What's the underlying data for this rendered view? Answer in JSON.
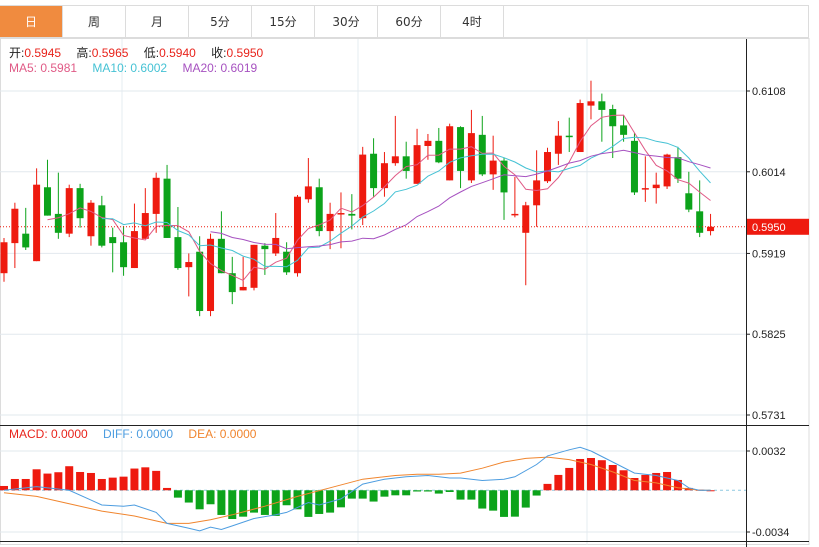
{
  "tabs": [
    {
      "label": "日",
      "active": true
    },
    {
      "label": "周",
      "active": false
    },
    {
      "label": "月",
      "active": false
    },
    {
      "label": "5分",
      "active": false
    },
    {
      "label": "15分",
      "active": false
    },
    {
      "label": "30分",
      "active": false
    },
    {
      "label": "60分",
      "active": false
    },
    {
      "label": "4时",
      "active": false
    }
  ],
  "legend": {
    "open_label": "开:",
    "open": "0.5945",
    "high_label": "高:",
    "high": "0.5965",
    "low_label": "低:",
    "low": "0.5940",
    "close_label": "收:",
    "close": "0.5950",
    "ma5": "MA5: 0.5981",
    "ma10": "MA10: 0.6002",
    "ma20": "MA20: 0.6019",
    "macd": "MACD: 0.0000",
    "diff": "DIFF: 0.0000",
    "dea": "DEA: 0.0000"
  },
  "colors": {
    "up": "#ee1a0f",
    "down": "#0ca31a",
    "ma5": "#e05a86",
    "ma10": "#45c2d4",
    "ma20": "#a651c0",
    "diff": "#4d9de0",
    "dea": "#f0852e",
    "active_tab": "#f08b3f"
  },
  "chart_data": [
    {
      "type": "candlestick",
      "title": "",
      "ylim": [
        0.5731,
        0.6108
      ],
      "y_ticks": [
        "0.6108",
        "0.6014",
        "0.5919",
        "0.5825",
        "0.5731"
      ],
      "last_price": "0.5950",
      "ma_periods": [
        5,
        10,
        20
      ],
      "grid": true,
      "ohlc": [
        [
          0.5896,
          0.5937,
          0.5886,
          0.5932
        ],
        [
          0.5931,
          0.5978,
          0.5902,
          0.5971
        ],
        [
          0.5942,
          0.5972,
          0.5923,
          0.5926
        ],
        [
          0.591,
          0.6018,
          0.591,
          0.5999
        ],
        [
          0.5996,
          0.6028,
          0.5963,
          0.5963
        ],
        [
          0.5965,
          0.6013,
          0.5936,
          0.5943
        ],
        [
          0.5942,
          0.5999,
          0.5938,
          0.5995
        ],
        [
          0.5995,
          0.6,
          0.5949,
          0.596
        ],
        [
          0.5939,
          0.5981,
          0.5928,
          0.5978
        ],
        [
          0.5975,
          0.5986,
          0.5926,
          0.5928
        ],
        [
          0.5938,
          0.5949,
          0.5897,
          0.5931
        ],
        [
          0.5932,
          0.5951,
          0.5893,
          0.5903
        ],
        [
          0.5902,
          0.5977,
          0.5902,
          0.5945
        ],
        [
          0.5936,
          0.5995,
          0.5936,
          0.5966
        ],
        [
          0.5965,
          0.6013,
          0.5943,
          0.6007
        ],
        [
          0.6006,
          0.6022,
          0.5937,
          0.5937
        ],
        [
          0.5938,
          0.5973,
          0.59,
          0.5902
        ],
        [
          0.5903,
          0.5919,
          0.5869,
          0.5909
        ],
        [
          0.5921,
          0.5939,
          0.5846,
          0.5852
        ],
        [
          0.5852,
          0.5942,
          0.5846,
          0.5936
        ],
        [
          0.5936,
          0.5968,
          0.5896,
          0.5896
        ],
        [
          0.5896,
          0.5915,
          0.586,
          0.5874
        ],
        [
          0.5876,
          0.5915,
          0.5876,
          0.588
        ],
        [
          0.5879,
          0.5929,
          0.5876,
          0.5929
        ],
        [
          0.5928,
          0.5931,
          0.5894,
          0.5924
        ],
        [
          0.5919,
          0.5966,
          0.5916,
          0.5937
        ],
        [
          0.5921,
          0.5932,
          0.5894,
          0.5897
        ],
        [
          0.5896,
          0.5987,
          0.5892,
          0.5985
        ],
        [
          0.5982,
          0.603,
          0.5978,
          0.5997
        ],
        [
          0.5996,
          0.6006,
          0.5939,
          0.5945
        ],
        [
          0.5945,
          0.5978,
          0.5924,
          0.5965
        ],
        [
          0.5965,
          0.599,
          0.5925,
          0.5966
        ],
        [
          0.5965,
          0.5988,
          0.5947,
          0.5963
        ],
        [
          0.596,
          0.6043,
          0.5952,
          0.6034
        ],
        [
          0.6035,
          0.6053,
          0.5985,
          0.5995
        ],
        [
          0.5995,
          0.6037,
          0.5985,
          0.6024
        ],
        [
          0.6024,
          0.6079,
          0.6021,
          0.6032
        ],
        [
          0.6032,
          0.6049,
          0.6006,
          0.6015
        ],
        [
          0.6,
          0.6064,
          0.6,
          0.6045
        ],
        [
          0.6044,
          0.6058,
          0.6028,
          0.605
        ],
        [
          0.605,
          0.6065,
          0.6024,
          0.6025
        ],
        [
          0.6004,
          0.607,
          0.6004,
          0.6067
        ],
        [
          0.6066,
          0.6067,
          0.5995,
          0.6015
        ],
        [
          0.6004,
          0.6086,
          0.6001,
          0.6059
        ],
        [
          0.6057,
          0.6079,
          0.6009,
          0.6011
        ],
        [
          0.6011,
          0.6056,
          0.5993,
          0.6027
        ],
        [
          0.6027,
          0.603,
          0.5958,
          0.599
        ],
        [
          0.5964,
          0.6008,
          0.5961,
          0.5965
        ],
        [
          0.5943,
          0.5979,
          0.5882,
          0.5975
        ],
        [
          0.5975,
          0.6039,
          0.595,
          0.6004
        ],
        [
          0.6003,
          0.6042,
          0.6001,
          0.6037
        ],
        [
          0.6035,
          0.6073,
          0.6022,
          0.6056
        ],
        [
          0.6056,
          0.6077,
          0.6037,
          0.6055
        ],
        [
          0.6037,
          0.6098,
          0.6037,
          0.6094
        ],
        [
          0.6091,
          0.612,
          0.6075,
          0.6096
        ],
        [
          0.6096,
          0.6105,
          0.6049,
          0.6086
        ],
        [
          0.6087,
          0.6092,
          0.603,
          0.6067
        ],
        [
          0.6068,
          0.608,
          0.6049,
          0.6057
        ],
        [
          0.605,
          0.6059,
          0.5987,
          0.599
        ],
        [
          0.5994,
          0.6032,
          0.5979,
          0.5995
        ],
        [
          0.5995,
          0.6013,
          0.5977,
          0.5999
        ],
        [
          0.5997,
          0.6035,
          0.5994,
          0.6034
        ],
        [
          0.6031,
          0.6043,
          0.6001,
          0.6006
        ],
        [
          0.5989,
          0.6014,
          0.5967,
          0.597
        ],
        [
          0.5968,
          0.6004,
          0.5938,
          0.5943
        ],
        [
          0.5945,
          0.5965,
          0.594,
          0.595
        ]
      ]
    },
    {
      "type": "bar",
      "title": "MACD",
      "ylim": [
        -0.0034,
        0.0032
      ],
      "y_ticks": [
        "0.0032",
        "-0.0034"
      ],
      "macd_hist": [
        0.00035,
        0.00092,
        0.00092,
        0.00171,
        0.00136,
        0.00147,
        0.00196,
        0.00149,
        0.00141,
        0.00092,
        0.00103,
        0.00111,
        0.00177,
        0.00187,
        0.00158,
        0.00019,
        -0.0006,
        -0.001,
        -0.00155,
        -0.00114,
        -0.00201,
        -0.00234,
        -0.00215,
        -0.00182,
        -0.00201,
        -0.00209,
        -0.00122,
        -0.00155,
        -0.00217,
        -0.00193,
        -0.00182,
        -0.00139,
        -0.00068,
        -0.00068,
        -0.00092,
        -0.00052,
        -0.00041,
        -0.00041,
        -0.0001,
        -0.0001,
        -0.00027,
        -0.00014,
        -0.00076,
        -0.00076,
        -0.00149,
        -0.00166,
        -0.00217,
        -0.00215,
        -0.00141,
        -0.00043,
        0.00052,
        0.00125,
        0.00182,
        0.00255,
        0.00263,
        0.00245,
        0.00206,
        0.00163,
        0.001,
        0.00125,
        0.00141,
        0.00149,
        0.00084,
        0.00019,
        5e-05,
        0
      ],
      "diff_points": [
        [
          0,
          0
        ],
        [
          3,
          0.0003
        ],
        [
          6,
          0
        ],
        [
          8,
          -0.0008
        ],
        [
          9,
          -0.0012
        ],
        [
          11,
          -0.0013
        ],
        [
          12,
          -0.0012
        ],
        [
          14,
          -0.0018
        ],
        [
          15,
          -0.0027
        ],
        [
          17,
          -0.0031
        ],
        [
          18,
          -0.0033
        ],
        [
          19,
          -0.003
        ],
        [
          20,
          -0.0032
        ],
        [
          21,
          -0.0029
        ],
        [
          23,
          -0.0023
        ],
        [
          25,
          -0.002
        ],
        [
          26,
          -0.0018
        ],
        [
          28,
          -0.001
        ],
        [
          29,
          -0.0012
        ],
        [
          31,
          -0.0007
        ],
        [
          33,
          0.0005
        ],
        [
          35,
          0.0009
        ],
        [
          37,
          0.0011
        ],
        [
          39,
          0.0012
        ],
        [
          41,
          0.001
        ],
        [
          42,
          0.001
        ],
        [
          44,
          0.0008
        ],
        [
          46,
          0.0009
        ],
        [
          47,
          0.0011
        ],
        [
          49,
          0.0021
        ],
        [
          50,
          0.0028
        ],
        [
          52,
          0.0033
        ],
        [
          53,
          0.0035
        ],
        [
          54,
          0.0032
        ],
        [
          56,
          0.0023
        ],
        [
          58,
          0.0014
        ],
        [
          60,
          0.0012
        ],
        [
          62,
          0.0008
        ],
        [
          63,
          0.0002
        ],
        [
          64,
          0
        ],
        [
          65,
          0
        ]
      ],
      "dea_points": [
        [
          0,
          -0.0002
        ],
        [
          3,
          -0.0005
        ],
        [
          6,
          -0.0011
        ],
        [
          9,
          -0.0017
        ],
        [
          12,
          -0.0021
        ],
        [
          15,
          -0.0027
        ],
        [
          17,
          -0.0027
        ],
        [
          19,
          -0.0024
        ],
        [
          21,
          -0.002
        ],
        [
          24,
          -0.0013
        ],
        [
          27,
          -0.0005
        ],
        [
          30,
          0.0002
        ],
        [
          33,
          0.0009
        ],
        [
          36,
          0.0012
        ],
        [
          38,
          0.0013
        ],
        [
          40,
          0.0013
        ],
        [
          42,
          0.0014
        ],
        [
          44,
          0.0018
        ],
        [
          46,
          0.0023
        ],
        [
          48,
          0.0026
        ],
        [
          50,
          0.0027
        ],
        [
          52,
          0.0025
        ],
        [
          54,
          0.0021
        ],
        [
          56,
          0.0015
        ],
        [
          58,
          0.0008
        ],
        [
          60,
          0.0006
        ],
        [
          62,
          0.0002
        ],
        [
          64,
          0
        ],
        [
          65,
          0
        ]
      ]
    }
  ]
}
